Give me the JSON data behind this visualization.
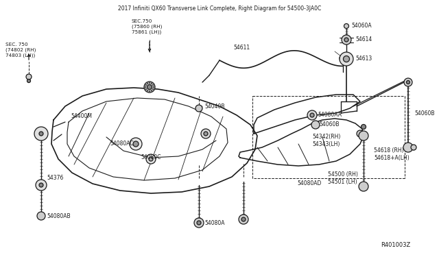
{
  "bg_color": "#ffffff",
  "line_color": "#1a1a1a",
  "ref_code": "R401003Z",
  "title": "2017 Infiniti QX60 Transverse Link Complete, Right Diagram for 54500-3JA0C",
  "labels": {
    "sec750_left": "SEC. 750\n(74802 (RH)\n74803 (LH))",
    "sec750_top": "SEC.750\n(75860 (RH)\n75861 (LH))",
    "54400M": "54400M",
    "54611": "54611",
    "54060A": "54060A",
    "54614": "54614",
    "54613": "54613",
    "54040B": "54040B",
    "54060B_left": "54060B",
    "54060B_right": "54060B",
    "54080AC": "54080AC",
    "54080C": "54080C",
    "54376": "54376",
    "54080AB": "54080AB",
    "54080AA": "54080AA",
    "54342": "54342(RH)\n54343(LH)",
    "54618": "54618 (RH)\n54618+A(LH)",
    "54080AD": "54080AD",
    "54500": "54500 (RH)\n54501 (LH)",
    "54080A": "54080A"
  },
  "lw": 0.9
}
